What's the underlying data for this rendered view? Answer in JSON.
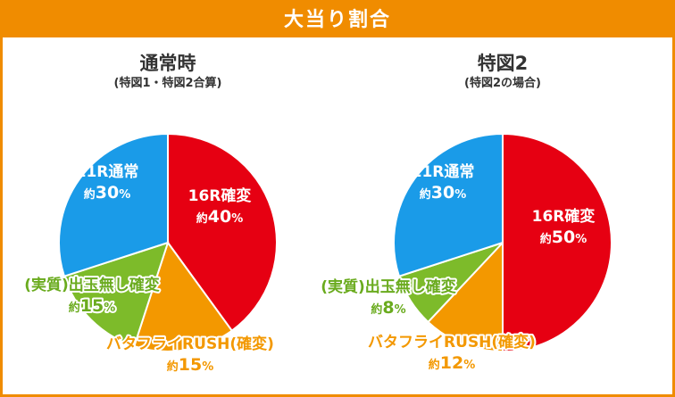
{
  "header": {
    "title": "大当り割合"
  },
  "colors": {
    "accent": "#f08c00",
    "red": "#e60012",
    "blue": "#1a9be8",
    "green": "#7dbb2a",
    "orange": "#f39800"
  },
  "chart_data": [
    {
      "type": "pie",
      "title": "通常時",
      "subtitle": "(特図1・特図2合算)",
      "series": [
        {
          "label": "16R確変",
          "prefix": "約",
          "value": 40,
          "value_text": "40",
          "unit": "%",
          "color": "#e60012",
          "label_style": "inside"
        },
        {
          "label": "バタフライRUSH(確変)",
          "prefix": "約",
          "value": 15,
          "value_text": "15",
          "unit": "%",
          "color": "#f39800",
          "label_style": "outline-orange"
        },
        {
          "label": "(実質)出玉無し確変",
          "prefix": "約",
          "value": 15,
          "value_text": "15",
          "unit": "%",
          "color": "#7dbb2a",
          "label_style": "outline-green"
        },
        {
          "label": "11R通常",
          "prefix": "約",
          "value": 30,
          "value_text": "30",
          "unit": "%",
          "color": "#1a9be8",
          "label_style": "inside"
        }
      ]
    },
    {
      "type": "pie",
      "title": "特図2",
      "subtitle": "(特図2の場合)",
      "series": [
        {
          "label": "16R確変",
          "prefix": "約",
          "value": 50,
          "value_text": "50",
          "unit": "%",
          "color": "#e60012",
          "label_style": "inside"
        },
        {
          "label": "バタフライRUSH(確変)",
          "prefix": "約",
          "value": 12,
          "value_text": "12",
          "unit": "%",
          "color": "#f39800",
          "label_style": "outline-orange"
        },
        {
          "label": "(実質)出玉無し確変",
          "prefix": "約",
          "value": 8,
          "value_text": "8",
          "unit": "%",
          "color": "#7dbb2a",
          "label_style": "outline-green"
        },
        {
          "label": "11R通常",
          "prefix": "約",
          "value": 30,
          "value_text": "30",
          "unit": "%",
          "color": "#1a9be8",
          "label_style": "inside"
        }
      ]
    }
  ]
}
